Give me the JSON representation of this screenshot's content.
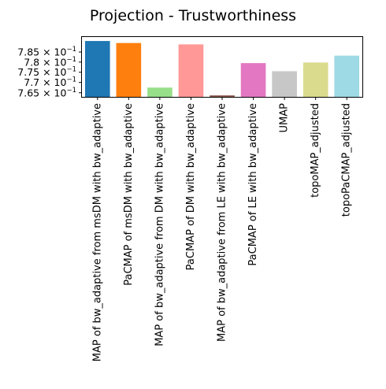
{
  "chart_data": {
    "type": "bar",
    "title": "Projection - Trustworthiness",
    "xlabel": "",
    "ylabel": "",
    "categories": [
      "MAP of bw_adaptive from msDM with bw_adaptive",
      "PaCMAP of msDM with bw_adaptive",
      "MAP of bw_adaptive from DM with bw_adaptive",
      "PaCMAP of DM with bw_adaptive",
      "MAP of bw_adaptive from LE with bw_adaptive",
      "PaCMAP of LE with bw_adaptive",
      "UMAP",
      "topoMAP_adjusted",
      "topoPaCMAP_adjusted"
    ],
    "values": [
      0.7905,
      0.7895,
      0.7675,
      0.7888,
      0.7637,
      0.7795,
      0.7755,
      0.7798,
      0.7832
    ],
    "colors": [
      "#1f77b4",
      "#ff7f0e",
      "#98df8a",
      "#ff9896",
      "#8c564b",
      "#e377c2",
      "#c7c7c7",
      "#dbdb8d",
      "#9edae5"
    ],
    "yscale": "log",
    "ylim": [
      0.763,
      0.7925
    ],
    "yticks": [
      0.765,
      0.77,
      0.775,
      0.78,
      0.785
    ],
    "ytick_labels": [
      {
        "mant": "7.65",
        "exp": "−1"
      },
      {
        "mant": "7.7",
        "exp": "−1"
      },
      {
        "mant": "7.75",
        "exp": "−1"
      },
      {
        "mant": "7.8",
        "exp": "−1"
      },
      {
        "mant": "7.85",
        "exp": "−1"
      }
    ],
    "grid": false,
    "legend": "none"
  }
}
